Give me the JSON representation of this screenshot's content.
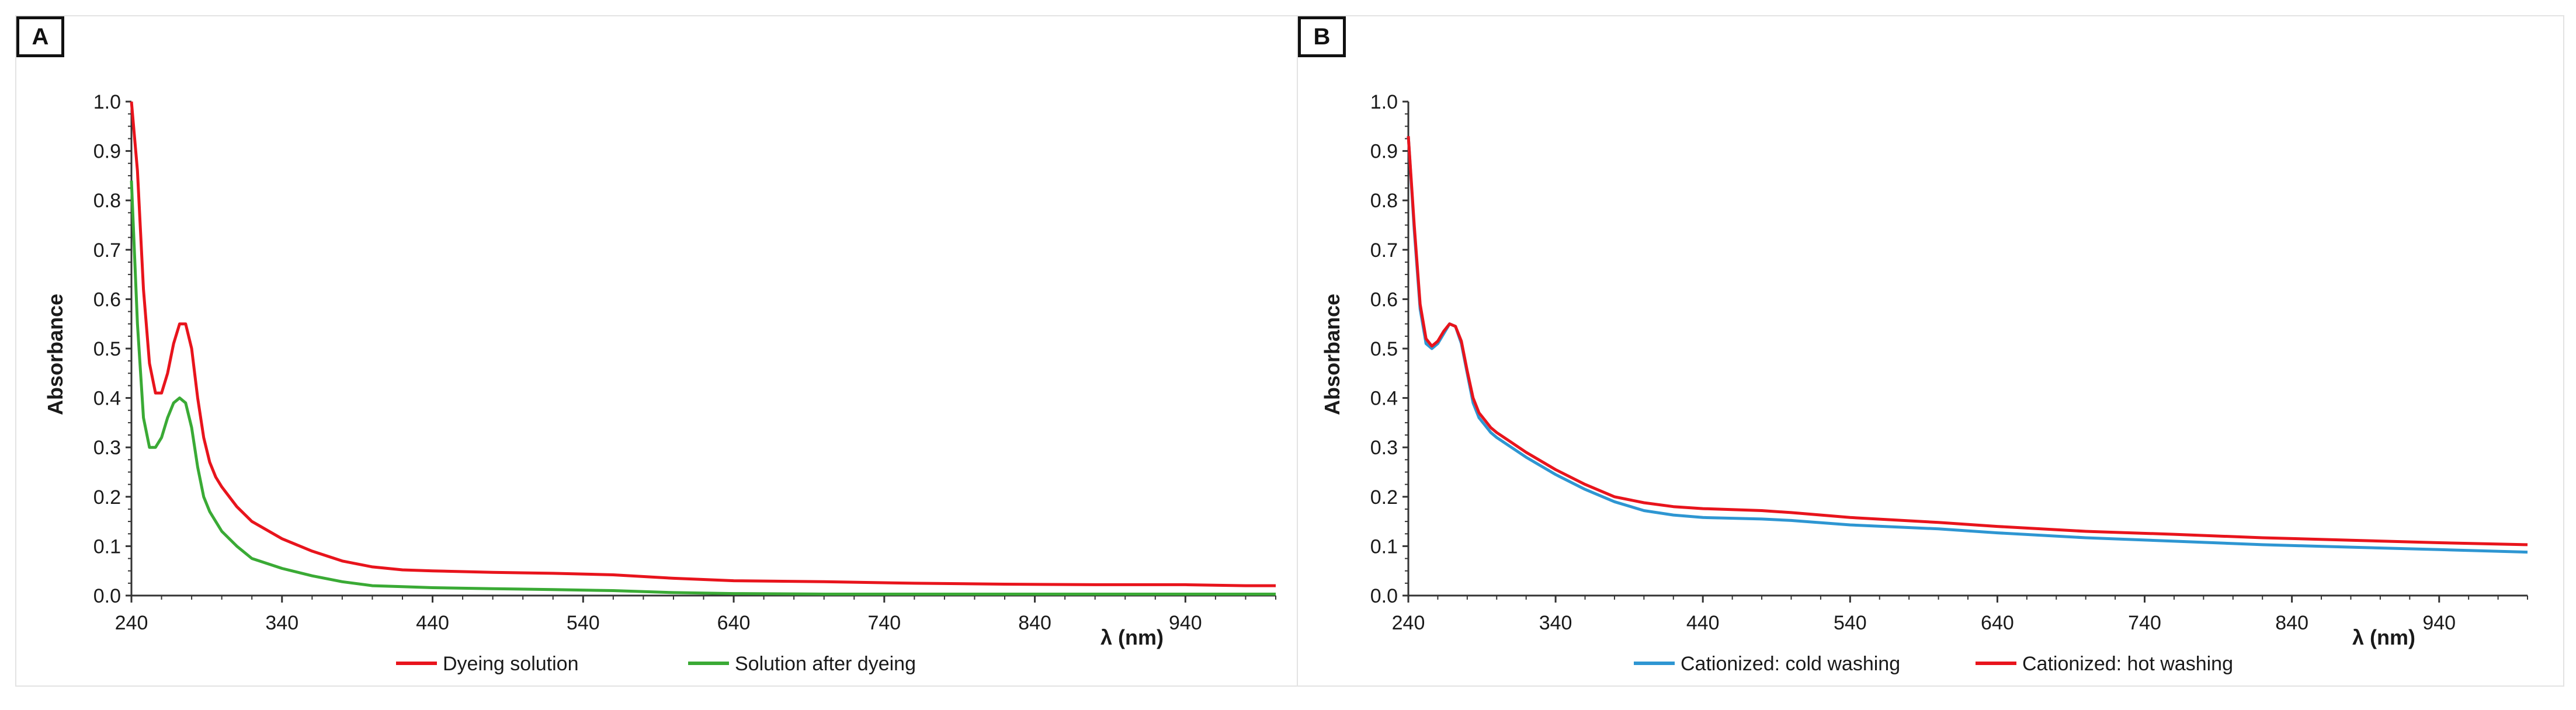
{
  "panels": {
    "a": {
      "letter": "A"
    },
    "b": {
      "letter": "B"
    }
  },
  "chart_data": [
    {
      "type": "line",
      "panel": "A",
      "title": "",
      "xlabel": "λ (nm)",
      "ylabel": "Absorbance",
      "xlim": [
        240,
        1000
      ],
      "ylim": [
        0,
        1.0
      ],
      "xticks": [
        240,
        340,
        440,
        540,
        640,
        740,
        840,
        940
      ],
      "yticks": [
        0.0,
        0.1,
        0.2,
        0.3,
        0.4,
        0.5,
        0.6,
        0.7,
        0.8,
        0.9,
        1.0
      ],
      "xtick_labels": [
        "240",
        "340",
        "440",
        "540",
        "640",
        "740",
        "840",
        "940"
      ],
      "ytick_labels": [
        "0.0",
        "0.1",
        "0.2",
        "0.3",
        "0.4",
        "0.5",
        "0.6",
        "0.7",
        "0.8",
        "0.9",
        "1.0"
      ],
      "legend_position": "bottom",
      "series": [
        {
          "name": "Dyeing solution",
          "color": "#e8141c",
          "x": [
            240,
            244,
            248,
            252,
            256,
            260,
            264,
            268,
            272,
            276,
            280,
            284,
            288,
            292,
            296,
            300,
            310,
            320,
            340,
            360,
            380,
            400,
            420,
            440,
            480,
            520,
            560,
            600,
            640,
            700,
            760,
            820,
            880,
            940,
            980,
            1000
          ],
          "y": [
            1.0,
            0.86,
            0.62,
            0.47,
            0.41,
            0.41,
            0.45,
            0.51,
            0.55,
            0.55,
            0.5,
            0.4,
            0.32,
            0.27,
            0.24,
            0.22,
            0.18,
            0.15,
            0.115,
            0.09,
            0.07,
            0.058,
            0.052,
            0.05,
            0.047,
            0.045,
            0.042,
            0.035,
            0.03,
            0.028,
            0.025,
            0.023,
            0.022,
            0.022,
            0.02,
            0.02
          ]
        },
        {
          "name": "Solution after dyeing",
          "color": "#3aaa35",
          "x": [
            240,
            244,
            248,
            252,
            256,
            260,
            264,
            268,
            272,
            276,
            280,
            284,
            288,
            292,
            296,
            300,
            310,
            320,
            340,
            360,
            380,
            400,
            420,
            440,
            480,
            520,
            560,
            600,
            640,
            700,
            760,
            820,
            880,
            940,
            1000
          ],
          "y": [
            0.84,
            0.55,
            0.36,
            0.3,
            0.3,
            0.32,
            0.36,
            0.39,
            0.4,
            0.39,
            0.34,
            0.26,
            0.2,
            0.17,
            0.15,
            0.13,
            0.1,
            0.075,
            0.055,
            0.04,
            0.028,
            0.02,
            0.018,
            0.016,
            0.014,
            0.012,
            0.01,
            0.006,
            0.004,
            0.003,
            0.003,
            0.003,
            0.003,
            0.003,
            0.003
          ]
        }
      ]
    },
    {
      "type": "line",
      "panel": "B",
      "title": "",
      "xlabel": "λ (nm)",
      "ylabel": "Absorbance",
      "xlim": [
        240,
        1000
      ],
      "ylim": [
        0,
        1.0
      ],
      "xticks": [
        240,
        340,
        440,
        540,
        640,
        740,
        840,
        940
      ],
      "yticks": [
        0.0,
        0.1,
        0.2,
        0.3,
        0.4,
        0.5,
        0.6,
        0.7,
        0.8,
        0.9,
        1.0
      ],
      "xtick_labels": [
        "240",
        "340",
        "440",
        "540",
        "640",
        "740",
        "840",
        "940"
      ],
      "ytick_labels": [
        "0.0",
        "0.1",
        "0.2",
        "0.3",
        "0.4",
        "0.5",
        "0.6",
        "0.7",
        "0.8",
        "0.9",
        "1.0"
      ],
      "legend_position": "bottom",
      "series": [
        {
          "name": "Cationized: cold washing",
          "color": "#2e96d2",
          "x": [
            240,
            244,
            248,
            252,
            256,
            260,
            264,
            268,
            272,
            276,
            280,
            284,
            288,
            292,
            296,
            300,
            310,
            320,
            340,
            360,
            380,
            400,
            420,
            440,
            480,
            500,
            540,
            600,
            640,
            700,
            760,
            820,
            880,
            940,
            1000
          ],
          "y": [
            0.93,
            0.74,
            0.58,
            0.51,
            0.5,
            0.51,
            0.53,
            0.55,
            0.545,
            0.51,
            0.45,
            0.39,
            0.36,
            0.345,
            0.33,
            0.32,
            0.3,
            0.28,
            0.245,
            0.215,
            0.19,
            0.172,
            0.163,
            0.158,
            0.155,
            0.152,
            0.143,
            0.135,
            0.127,
            0.117,
            0.11,
            0.103,
            0.098,
            0.093,
            0.088
          ]
        },
        {
          "name": "Cationized: hot washing",
          "color": "#e8141c",
          "x": [
            240,
            244,
            248,
            252,
            256,
            260,
            264,
            268,
            272,
            276,
            280,
            284,
            288,
            292,
            296,
            300,
            310,
            320,
            340,
            360,
            380,
            400,
            420,
            440,
            480,
            500,
            540,
            600,
            640,
            700,
            760,
            820,
            880,
            940,
            1000
          ],
          "y": [
            0.93,
            0.75,
            0.59,
            0.52,
            0.505,
            0.515,
            0.535,
            0.55,
            0.545,
            0.515,
            0.455,
            0.4,
            0.37,
            0.355,
            0.34,
            0.33,
            0.31,
            0.29,
            0.255,
            0.225,
            0.2,
            0.188,
            0.18,
            0.176,
            0.172,
            0.168,
            0.158,
            0.148,
            0.14,
            0.13,
            0.124,
            0.117,
            0.112,
            0.107,
            0.103
          ]
        }
      ]
    }
  ]
}
